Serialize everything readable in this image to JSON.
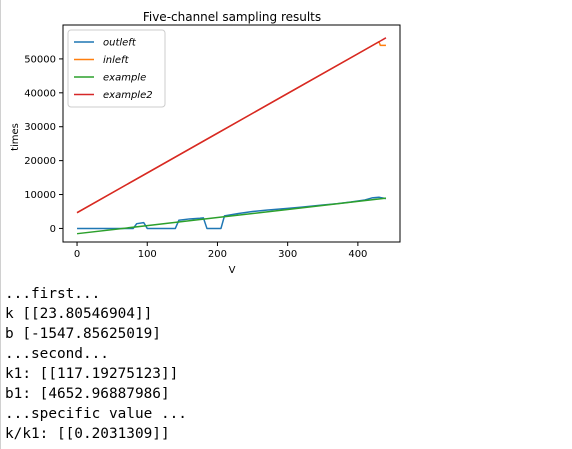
{
  "chart_data": {
    "type": "line",
    "title": "Five-channel sampling results",
    "xlabel": "V",
    "ylabel": "times",
    "xlim": [
      -20,
      460
    ],
    "ylim": [
      -4000,
      60000
    ],
    "xticks": [
      0,
      100,
      200,
      300,
      400
    ],
    "xtick_labels": [
      "0",
      "100",
      "200",
      "300",
      "400"
    ],
    "yticks": [
      0,
      10000,
      20000,
      30000,
      40000,
      50000
    ],
    "ytick_labels": [
      "0",
      "10000",
      "20000",
      "30000",
      "40000",
      "50000"
    ],
    "grid": false,
    "legend": "top-left",
    "series": [
      {
        "name": "outleft",
        "color": "#1f77b4",
        "x": [
          0,
          70,
          80,
          85,
          95,
          100,
          140,
          145,
          160,
          175,
          180,
          185,
          205,
          210,
          230,
          250,
          270,
          300,
          320,
          350,
          370,
          390,
          410,
          420,
          430,
          440
        ],
        "y": [
          0,
          0,
          0,
          1400,
          1700,
          0,
          0,
          2400,
          2800,
          3000,
          3100,
          0,
          0,
          3700,
          4400,
          5000,
          5400,
          5900,
          6300,
          6900,
          7300,
          7800,
          8400,
          9000,
          9200,
          8800
        ]
      },
      {
        "name": "inleft",
        "color": "#ff7f0e",
        "x": [
          0,
          100,
          200,
          300,
          400,
          430,
          432,
          440
        ],
        "y": [
          4653,
          16370,
          28090,
          39810,
          51530,
          55050,
          54000,
          54000
        ]
      },
      {
        "name": "example",
        "color": "#2ca02c",
        "x": [
          0,
          100,
          200,
          300,
          400,
          440
        ],
        "y": [
          -1548,
          833,
          3213,
          5594,
          7974,
          8926
        ]
      },
      {
        "name": "example2",
        "color": "#d62728",
        "x": [
          0,
          100,
          200,
          300,
          400,
          440
        ],
        "y": [
          4653,
          16372,
          28091,
          39811,
          51530,
          56218
        ]
      }
    ]
  },
  "console": {
    "lines": [
      "...first...",
      "k [[23.80546904]]",
      "b [-1547.85625019]",
      "...second...",
      "k1: [[117.19275123]]",
      "b1: [4652.96887986]",
      "...specific value ...",
      "k/k1: [[0.2031309]]"
    ]
  }
}
